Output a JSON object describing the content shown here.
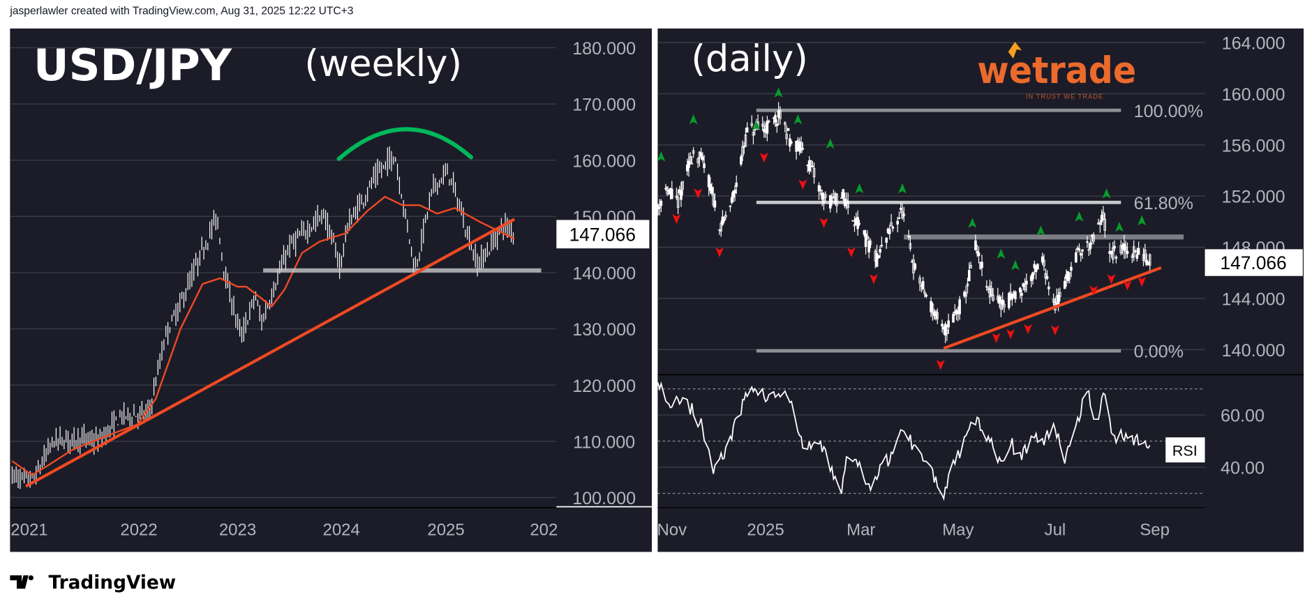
{
  "header": {
    "credit": "jasperlawler created with TradingView.com, Aug 31, 2025 12:22 UTC+3"
  },
  "footer": {
    "brand": "TradingView"
  },
  "logo": {
    "text": "wetrade",
    "tagline": "IN TRUST WE TRADE"
  },
  "colors": {
    "background": "#1c1c28",
    "grid": "#393b47",
    "bars": "#ffffff",
    "trend": "#f04a23",
    "ma": "#f04a23",
    "arc": "#00b85a",
    "up_marker": "#089c2c",
    "down_marker": "#f01010",
    "level": "#9a9ca3"
  },
  "chart_data": [
    {
      "type": "ohlc",
      "title": "USD/JPY",
      "subtitle": "(weekly)",
      "y_ticks": [
        "180.000",
        "170.000",
        "160.000",
        "150.000",
        "140.000",
        "130.000",
        "120.000",
        "110.000",
        "100.000"
      ],
      "x_ticks": [
        "2021",
        "2022",
        "2023",
        "2024",
        "2025",
        "202"
      ],
      "ylim": [
        97,
        185
      ],
      "last_price": "147.066",
      "price_path": [
        [
          "2020-11-02",
          104
        ],
        [
          "2020-12-20",
          103
        ],
        [
          "2021-01-20",
          103.5
        ],
        [
          "2021-03-25",
          110
        ],
        [
          "2021-07-01",
          110.5
        ],
        [
          "2021-09-01",
          110
        ],
        [
          "2021-11-20",
          114.5
        ],
        [
          "2022-02-25",
          115
        ],
        [
          "2022-04-25",
          129
        ],
        [
          "2022-06-20",
          135
        ],
        [
          "2022-10-20",
          150
        ],
        [
          "2022-11-20",
          139
        ],
        [
          "2023-01-15",
          128.5
        ],
        [
          "2023-03-05",
          136
        ],
        [
          "2023-03-25",
          131
        ],
        [
          "2023-06-30",
          144.5
        ],
        [
          "2023-10-30",
          150.5
        ],
        [
          "2023-12-28",
          141
        ],
        [
          "2024-01-20",
          148
        ],
        [
          "2024-04-28",
          157
        ],
        [
          "2024-07-05",
          161
        ],
        [
          "2024-09-15",
          140.5
        ],
        [
          "2024-11-15",
          155
        ],
        [
          "2025-01-10",
          158
        ],
        [
          "2025-04-20",
          141.5
        ],
        [
          "2025-06-01",
          144
        ],
        [
          "2025-07-20",
          148.5
        ],
        [
          "2025-08-29",
          147.07
        ]
      ],
      "moving_average": [
        [
          "2020-11-02",
          106.5
        ],
        [
          "2021-01-10",
          104
        ],
        [
          "2021-03-01",
          105.5
        ],
        [
          "2021-06-01",
          108.5
        ],
        [
          "2021-10-01",
          111
        ],
        [
          "2022-01-15",
          113
        ],
        [
          "2022-03-20",
          117.5
        ],
        [
          "2022-06-15",
          130
        ],
        [
          "2022-09-01",
          138
        ],
        [
          "2022-11-01",
          139
        ],
        [
          "2023-01-01",
          137.5
        ],
        [
          "2023-02-01",
          137.5
        ],
        [
          "2023-05-01",
          134
        ],
        [
          "2023-06-15",
          137
        ],
        [
          "2023-08-15",
          143.5
        ],
        [
          "2023-10-15",
          145.5
        ],
        [
          "2024-01-15",
          147
        ],
        [
          "2024-04-01",
          151
        ],
        [
          "2024-06-01",
          153.5
        ],
        [
          "2024-08-01",
          152
        ],
        [
          "2024-10-01",
          152
        ],
        [
          "2024-12-01",
          150.5
        ],
        [
          "2025-02-01",
          151.5
        ],
        [
          "2025-05-01",
          149
        ],
        [
          "2025-07-01",
          147.5
        ],
        [
          "2025-08-29",
          146
        ]
      ],
      "trendline": [
        [
          "2020-12-20",
          102
        ],
        [
          "2025-08-29",
          149.5
        ]
      ],
      "support_level": {
        "price": 140.4,
        "from": "2023-04-01",
        "to": "2025-12-01"
      }
    },
    {
      "type": "candlestick",
      "subtitle": "(daily)",
      "y_ticks": [
        "164.000",
        "160.000",
        "156.000",
        "152.000",
        "148.000",
        "144.000",
        "140.000"
      ],
      "x_ticks": [
        "Nov",
        "2025",
        "Mar",
        "May",
        "Jul",
        "Sep"
      ],
      "ylim": [
        138,
        165
      ],
      "last_price": "147.066",
      "price_path": [
        [
          "2024-10-20",
          150.5
        ],
        [
          "2024-10-28",
          152.5
        ],
        [
          "2024-11-05",
          151.5
        ],
        [
          "2024-11-15",
          155.5
        ],
        [
          "2024-11-22",
          154.5
        ],
        [
          "2024-12-03",
          149.5
        ],
        [
          "2024-12-10",
          151.5
        ],
        [
          "2024-12-20",
          157
        ],
        [
          "2025-01-03",
          157.5
        ],
        [
          "2025-01-10",
          158.2
        ],
        [
          "2025-01-17",
          156.2
        ],
        [
          "2025-01-25",
          155.5
        ],
        [
          "2025-02-05",
          152
        ],
        [
          "2025-02-10",
          151.5
        ],
        [
          "2025-02-18",
          152
        ],
        [
          "2025-02-28",
          149.5
        ],
        [
          "2025-03-11",
          147
        ],
        [
          "2025-03-20",
          149.5
        ],
        [
          "2025-03-27",
          150.8
        ],
        [
          "2025-04-03",
          146.5
        ],
        [
          "2025-04-10",
          144.5
        ],
        [
          "2025-04-22",
          141.3
        ],
        [
          "2025-05-05",
          144
        ],
        [
          "2025-05-12",
          148
        ],
        [
          "2025-05-20",
          144.5
        ],
        [
          "2025-05-30",
          143.5
        ],
        [
          "2025-06-10",
          144.7
        ],
        [
          "2025-06-23",
          147
        ],
        [
          "2025-07-01",
          143.5
        ],
        [
          "2025-07-15",
          147.5
        ],
        [
          "2025-07-25",
          148.5
        ],
        [
          "2025-07-31",
          150.5
        ],
        [
          "2025-08-04",
          147.3
        ],
        [
          "2025-08-12",
          147.8
        ],
        [
          "2025-08-22",
          147.5
        ],
        [
          "2025-08-29",
          147.07
        ]
      ],
      "fibonacci": [
        {
          "label": "100.00%",
          "price": 158.7
        },
        {
          "label": "61.80%",
          "price": 151.5
        },
        {
          "label": "0.00%",
          "price": 139.9
        }
      ],
      "fib_range": [
        "2024-12-26",
        "2025-08-11"
      ],
      "resistance_level": {
        "price": 148.8,
        "from": "2025-03-28",
        "to": "2025-09-19"
      },
      "trendline": [
        [
          "2025-04-22",
          140.1
        ],
        [
          "2025-09-05",
          146.4
        ]
      ],
      "up_markers": [
        [
          "2024-10-25",
          155.1
        ],
        [
          "2024-11-15",
          158.0
        ],
        [
          "2024-12-26",
          157.5
        ],
        [
          "2025-01-09",
          160.1
        ],
        [
          "2025-01-21",
          158.0
        ],
        [
          "2025-02-10",
          156.1
        ],
        [
          "2025-02-28",
          152.6
        ],
        [
          "2025-03-27",
          152.6
        ],
        [
          "2025-05-10",
          149.9
        ],
        [
          "2025-05-28",
          147.5
        ],
        [
          "2025-06-06",
          146.6
        ],
        [
          "2025-06-22",
          149.3
        ],
        [
          "2025-07-16",
          150.4
        ],
        [
          "2025-08-02",
          152.2
        ],
        [
          "2025-08-10",
          149.6
        ],
        [
          "2025-08-24",
          150.1
        ]
      ],
      "down_markers": [
        [
          "2024-11-04",
          150.2
        ],
        [
          "2024-11-18",
          152.2
        ],
        [
          "2024-12-02",
          147.6
        ],
        [
          "2024-12-31",
          155.0
        ],
        [
          "2025-01-24",
          152.9
        ],
        [
          "2025-02-06",
          149.9
        ],
        [
          "2025-02-23",
          147.6
        ],
        [
          "2025-03-09",
          145.5
        ],
        [
          "2025-04-20",
          138.8
        ],
        [
          "2025-05-25",
          140.9
        ],
        [
          "2025-06-03",
          141.2
        ],
        [
          "2025-06-14",
          141.6
        ],
        [
          "2025-07-01",
          141.5
        ],
        [
          "2025-07-25",
          144.6
        ],
        [
          "2025-08-05",
          145.5
        ],
        [
          "2025-08-15",
          145.0
        ],
        [
          "2025-08-24",
          145.3
        ]
      ]
    },
    {
      "type": "line",
      "name": "RSI",
      "y_ticks": [
        "60.00",
        "40.00"
      ],
      "levels": [
        70,
        50,
        30
      ],
      "ylim": [
        28,
        72
      ],
      "values": [
        [
          "2024-10-20",
          68
        ],
        [
          "2024-10-25",
          72
        ],
        [
          "2024-11-01",
          62
        ],
        [
          "2024-11-08",
          68
        ],
        [
          "2024-11-20",
          56
        ],
        [
          "2024-11-28",
          40
        ],
        [
          "2024-12-05",
          45
        ],
        [
          "2024-12-15",
          60
        ],
        [
          "2024-12-22",
          72
        ],
        [
          "2025-01-03",
          66
        ],
        [
          "2025-01-13",
          69
        ],
        [
          "2025-01-18",
          61
        ],
        [
          "2025-01-25",
          46
        ],
        [
          "2025-02-03",
          50
        ],
        [
          "2025-02-12",
          38
        ],
        [
          "2025-02-17",
          32
        ],
        [
          "2025-02-22",
          47
        ],
        [
          "2025-02-27",
          40
        ],
        [
          "2025-03-08",
          33
        ],
        [
          "2025-03-16",
          42
        ],
        [
          "2025-03-22",
          46
        ],
        [
          "2025-03-28",
          56
        ],
        [
          "2025-04-03",
          48
        ],
        [
          "2025-04-12",
          44
        ],
        [
          "2025-04-18",
          32
        ],
        [
          "2025-04-22",
          29
        ],
        [
          "2025-04-28",
          40
        ],
        [
          "2025-05-05",
          49
        ],
        [
          "2025-05-12",
          59
        ],
        [
          "2025-05-20",
          50
        ],
        [
          "2025-05-27",
          43
        ],
        [
          "2025-06-03",
          49
        ],
        [
          "2025-06-10",
          45
        ],
        [
          "2025-06-17",
          52
        ],
        [
          "2025-06-23",
          49
        ],
        [
          "2025-07-01",
          56
        ],
        [
          "2025-07-07",
          44
        ],
        [
          "2025-07-14",
          57
        ],
        [
          "2025-07-21",
          70
        ],
        [
          "2025-07-27",
          56
        ],
        [
          "2025-08-02",
          72
        ],
        [
          "2025-08-05",
          52
        ],
        [
          "2025-08-15",
          52
        ],
        [
          "2025-08-22",
          51
        ],
        [
          "2025-08-29",
          48
        ]
      ]
    }
  ]
}
